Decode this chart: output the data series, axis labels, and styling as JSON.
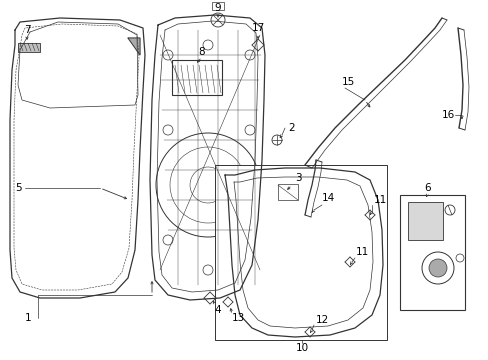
{
  "bg_color": "#ffffff",
  "lc": "#333333",
  "figsize": [
    4.89,
    3.6
  ],
  "dpi": 100,
  "xlim": [
    0,
    489
  ],
  "ylim": [
    0,
    360
  ]
}
